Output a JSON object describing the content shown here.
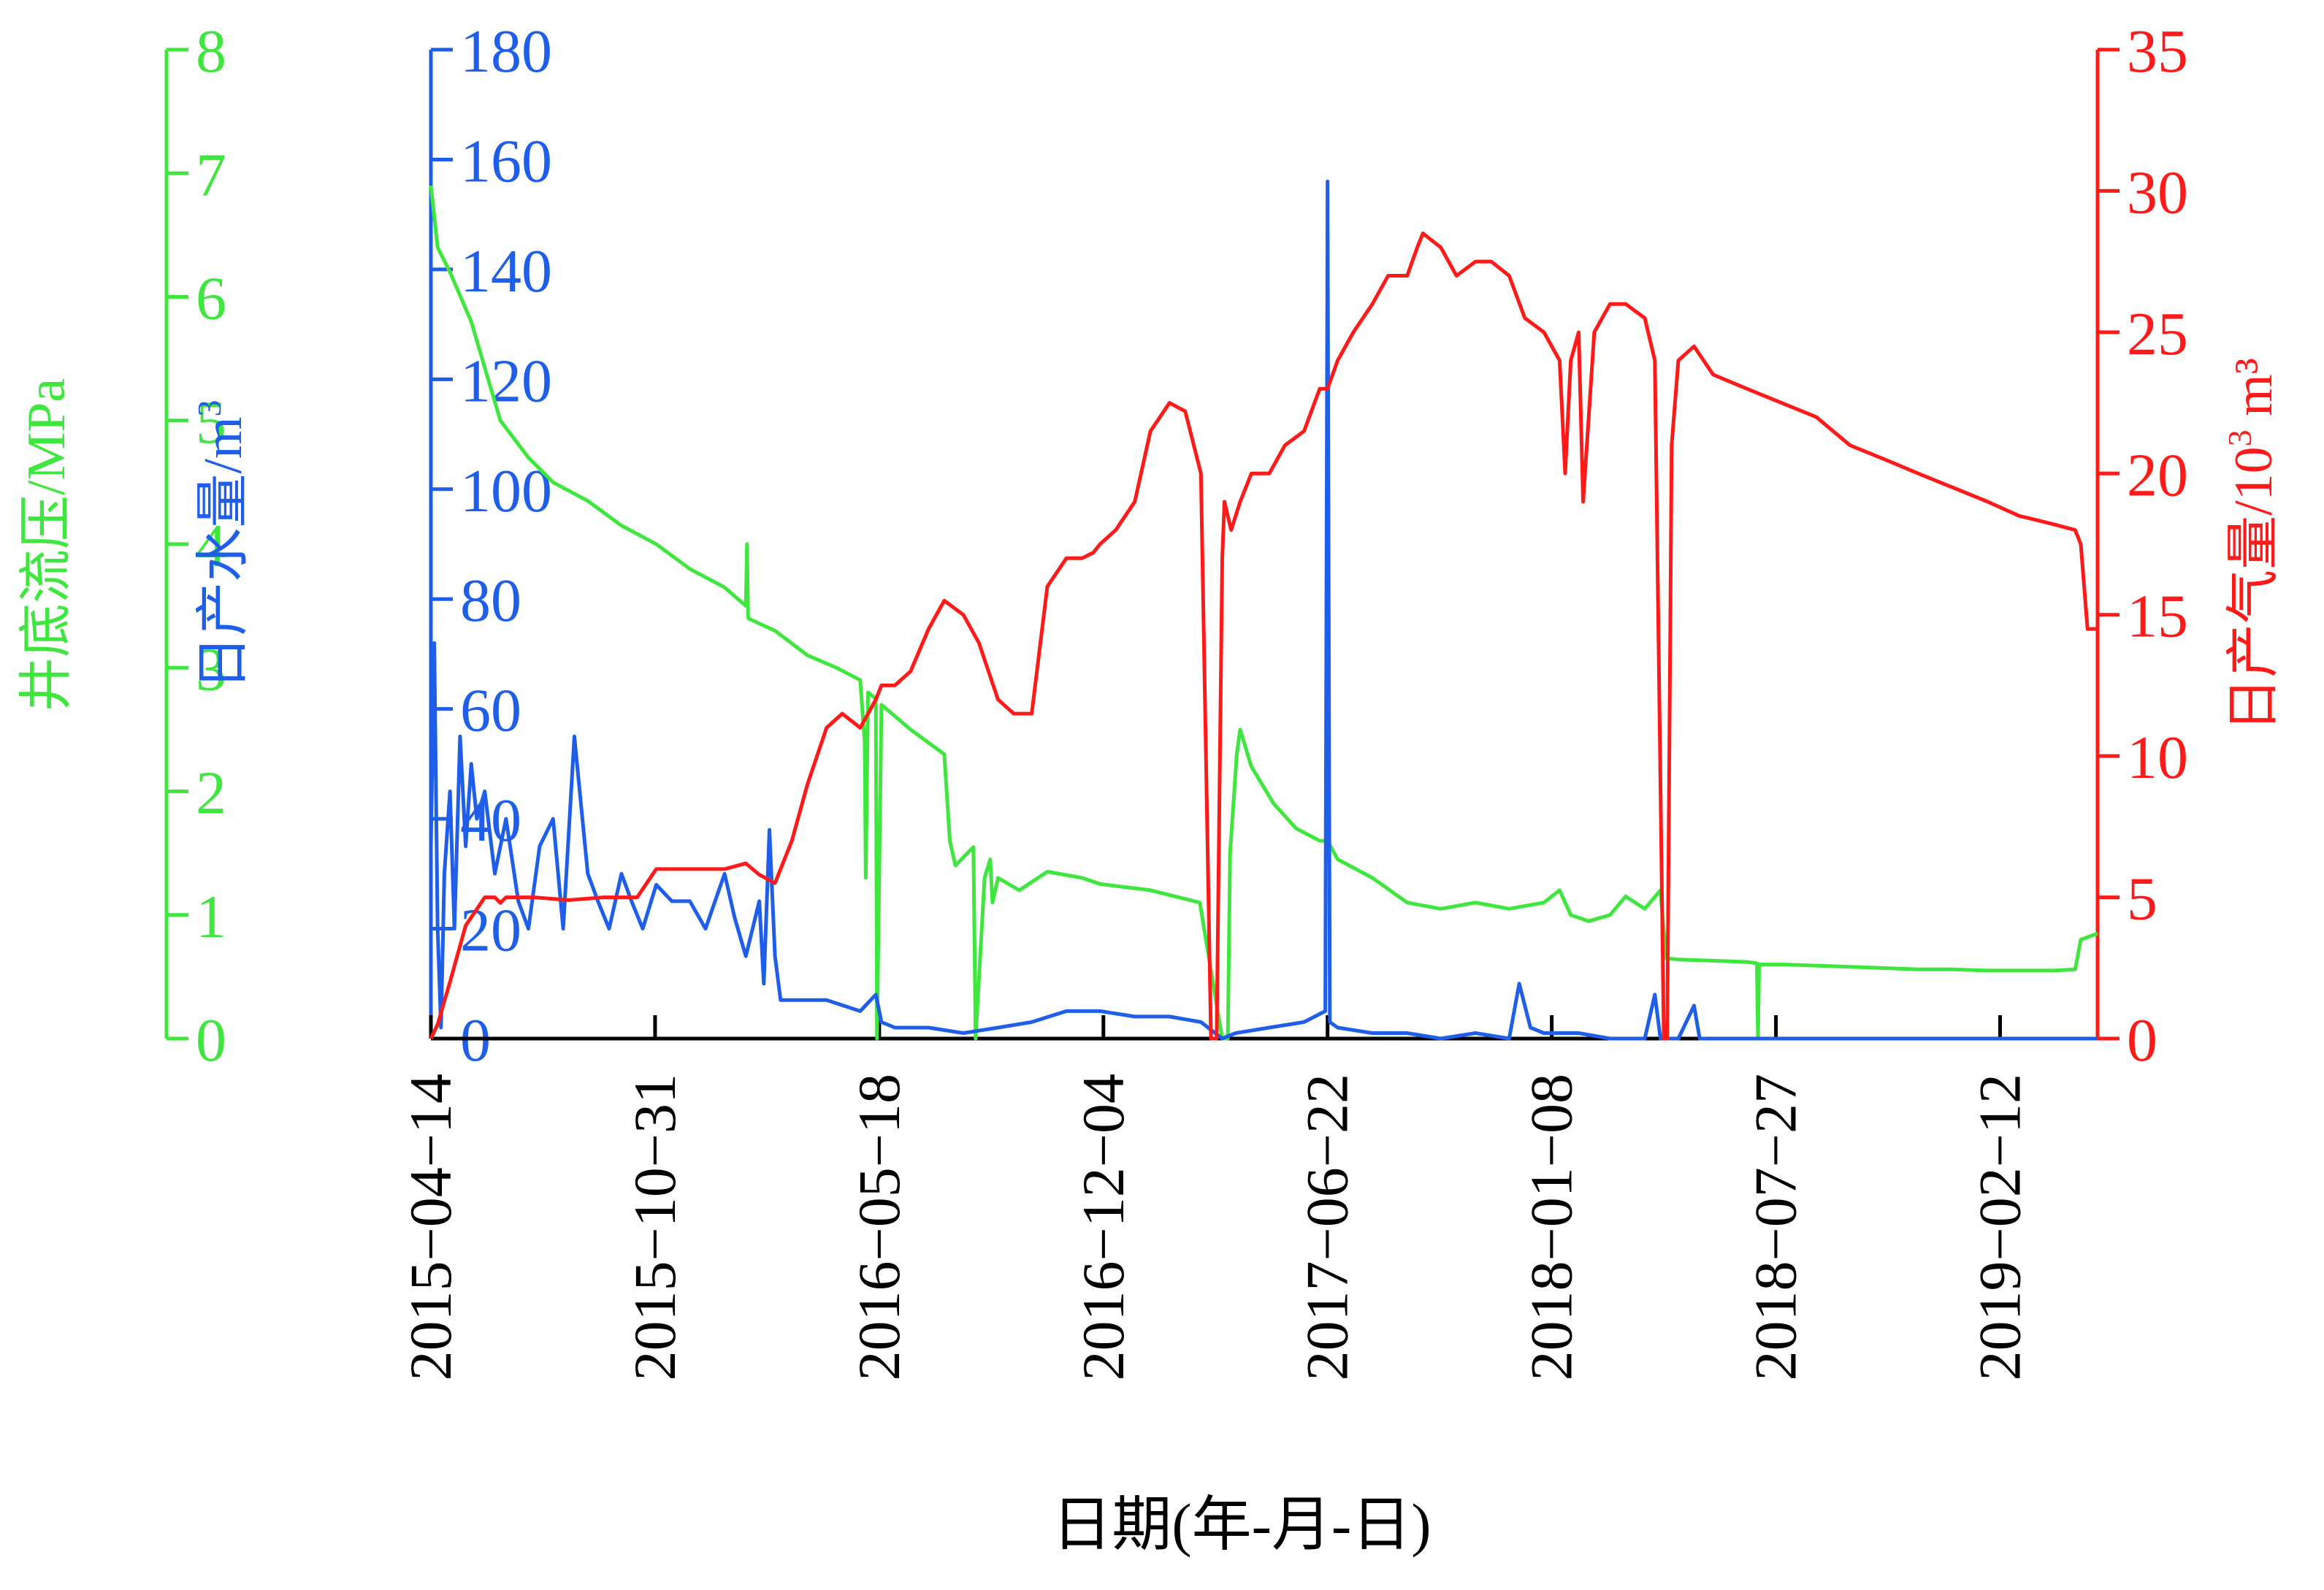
{
  "chart_data": {
    "type": "line",
    "xlabel": "日期(年-月-日)",
    "x_ticks": [
      "2015-04-14",
      "2015-10-31",
      "2016-05-18",
      "2016-12-04",
      "2017-06-22",
      "2018-01-08",
      "2018-07-27",
      "2019-02-12"
    ],
    "xlim": [
      "2015-04-14",
      "2019-05-10"
    ],
    "axes": {
      "pressure": {
        "label": "井底流压/MPa",
        "ylim": [
          0,
          8
        ],
        "ticks": [
          0,
          1,
          2,
          3,
          4,
          5,
          6,
          7,
          8
        ],
        "color": "#3ee63e",
        "side": "left-outer"
      },
      "water": {
        "label": "日产水量/m³",
        "ylim": [
          0,
          180
        ],
        "ticks": [
          0,
          20,
          40,
          60,
          80,
          100,
          120,
          140,
          160,
          180
        ],
        "color": "#1f5ee8",
        "side": "left-inner"
      },
      "gas": {
        "label": "日产气量/10³ m³",
        "ylim": [
          0,
          35
        ],
        "ticks": [
          0,
          5,
          10,
          15,
          20,
          25,
          30,
          35
        ],
        "color": "#ff1a1a",
        "side": "right"
      }
    },
    "series": [
      {
        "key": "pressure",
        "axis": "pressure",
        "color": "#3ee63e",
        "x": [
          "2015-04-14",
          "2015-04-20",
          "2015-05-01",
          "2015-05-20",
          "2015-06-15",
          "2015-07-10",
          "2015-08-01",
          "2015-09-01",
          "2015-10-01",
          "2015-11-01",
          "2015-12-01",
          "2016-01-01",
          "2016-01-20",
          "2016-01-21",
          "2016-01-22",
          "2016-02-15",
          "2016-03-15",
          "2016-04-10",
          "2016-05-01",
          "2016-05-05",
          "2016-05-06",
          "2016-05-08",
          "2016-05-15",
          "2016-05-16",
          "2016-05-20",
          "2016-06-15",
          "2016-07-15",
          "2016-07-20",
          "2016-07-25",
          "2016-08-10",
          "2016-08-12",
          "2016-08-20",
          "2016-08-25",
          "2016-08-27",
          "2016-09-01",
          "2016-09-20",
          "2016-10-15",
          "2016-11-15",
          "2016-12-01",
          "2017-01-15",
          "2017-02-28",
          "2017-03-20",
          "2017-03-25",
          "2017-03-27",
          "2017-04-02",
          "2017-04-05",
          "2017-04-15",
          "2017-05-05",
          "2017-05-25",
          "2017-06-15",
          "2017-06-22",
          "2017-07-01",
          "2017-08-01",
          "2017-09-01",
          "2017-10-01",
          "2017-11-01",
          "2017-12-01",
          "2018-01-01",
          "2018-01-15",
          "2018-01-25",
          "2018-02-10",
          "2018-03-01",
          "2018-03-15",
          "2018-04-01",
          "2018-04-15",
          "2018-04-20",
          "2018-05-01",
          "2018-06-01",
          "2018-07-01",
          "2018-07-10",
          "2018-07-11",
          "2018-07-12",
          "2018-08-01",
          "2018-09-01",
          "2018-10-01",
          "2018-11-01",
          "2018-12-01",
          "2019-01-01",
          "2019-02-01",
          "2019-03-01",
          "2019-04-01",
          "2019-04-20",
          "2019-04-25",
          "2019-05-10"
        ],
        "y": [
          6.9,
          6.4,
          6.2,
          5.8,
          5.0,
          4.7,
          4.5,
          4.35,
          4.15,
          4.0,
          3.8,
          3.65,
          3.5,
          4.0,
          3.4,
          3.3,
          3.1,
          3.0,
          2.9,
          2.4,
          1.3,
          2.8,
          2.75,
          0.0,
          2.7,
          2.5,
          2.3,
          1.6,
          1.4,
          1.55,
          0.0,
          1.3,
          1.45,
          1.1,
          1.3,
          1.2,
          1.35,
          1.3,
          1.25,
          1.2,
          1.1,
          0.0,
          0.0,
          1.5,
          2.3,
          2.5,
          2.2,
          1.9,
          1.7,
          1.6,
          1.6,
          1.45,
          1.3,
          1.1,
          1.05,
          1.1,
          1.05,
          1.1,
          1.2,
          1.0,
          0.95,
          1.0,
          1.15,
          1.05,
          1.2,
          0.65,
          0.64,
          0.63,
          0.62,
          0.61,
          0.0,
          0.6,
          0.6,
          0.59,
          0.58,
          0.57,
          0.56,
          0.56,
          0.55,
          0.55,
          0.55,
          0.56,
          0.8,
          0.85
        ]
      },
      {
        "key": "water",
        "axis": "water",
        "color": "#1f5ee8",
        "x": [
          "2015-04-14",
          "2015-04-17",
          "2015-04-20",
          "2015-04-23",
          "2015-04-26",
          "2015-05-01",
          "2015-05-05",
          "2015-05-10",
          "2015-05-15",
          "2015-05-20",
          "2015-05-25",
          "2015-06-01",
          "2015-06-10",
          "2015-06-20",
          "2015-07-01",
          "2015-07-10",
          "2015-07-20",
          "2015-08-01",
          "2015-08-10",
          "2015-08-20",
          "2015-09-01",
          "2015-09-10",
          "2015-09-20",
          "2015-10-01",
          "2015-10-10",
          "2015-10-20",
          "2015-11-01",
          "2015-11-15",
          "2015-12-01",
          "2015-12-15",
          "2016-01-01",
          "2016-01-10",
          "2016-01-20",
          "2016-02-01",
          "2016-02-05",
          "2016-02-10",
          "2016-02-15",
          "2016-02-20",
          "2016-03-01",
          "2016-04-01",
          "2016-05-01",
          "2016-05-15",
          "2016-05-20",
          "2016-06-01",
          "2016-07-01",
          "2016-08-01",
          "2016-09-01",
          "2016-10-01",
          "2016-11-01",
          "2016-12-01",
          "2017-01-01",
          "2017-02-01",
          "2017-03-01",
          "2017-03-20",
          "2017-04-01",
          "2017-05-01",
          "2017-06-01",
          "2017-06-20",
          "2017-06-22",
          "2017-06-24",
          "2017-07-01",
          "2017-08-01",
          "2017-09-01",
          "2017-10-01",
          "2017-11-01",
          "2017-12-01",
          "2017-12-10",
          "2017-12-20",
          "2018-01-01",
          "2018-02-01",
          "2018-03-01",
          "2018-04-01",
          "2018-04-10",
          "2018-04-15",
          "2018-05-01",
          "2018-05-15",
          "2018-05-20",
          "2018-06-01",
          "2018-07-01",
          "2019-05-10"
        ],
        "y": [
          35,
          72,
          20,
          2,
          30,
          45,
          20,
          55,
          35,
          50,
          40,
          45,
          30,
          40,
          25,
          20,
          35,
          40,
          20,
          55,
          30,
          25,
          20,
          30,
          25,
          20,
          28,
          25,
          25,
          20,
          30,
          22,
          15,
          25,
          10,
          38,
          15,
          7,
          7,
          7,
          5,
          8,
          3,
          2,
          2,
          1,
          2,
          3,
          5,
          5,
          4,
          4,
          3,
          0,
          1,
          2,
          3,
          5,
          156,
          3,
          2,
          1,
          1,
          0,
          1,
          0,
          10,
          2,
          1,
          1,
          0,
          0,
          8,
          0,
          0,
          6,
          0,
          0,
          0,
          0
        ]
      },
      {
        "key": "gas",
        "axis": "gas",
        "color": "#ff1a1a",
        "x": [
          "2015-04-14",
          "2015-04-20",
          "2015-05-01",
          "2015-05-15",
          "2015-06-01",
          "2015-06-10",
          "2015-06-15",
          "2015-06-20",
          "2015-07-15",
          "2015-08-15",
          "2015-09-15",
          "2015-10-15",
          "2015-11-01",
          "2015-12-01",
          "2016-01-01",
          "2016-01-20",
          "2016-02-01",
          "2016-02-15",
          "2016-03-01",
          "2016-03-15",
          "2016-04-01",
          "2016-04-15",
          "2016-05-01",
          "2016-05-15",
          "2016-05-20",
          "2016-06-01",
          "2016-06-15",
          "2016-07-01",
          "2016-07-15",
          "2016-08-01",
          "2016-08-15",
          "2016-09-01",
          "2016-09-15",
          "2016-10-01",
          "2016-10-15",
          "2016-11-01",
          "2016-11-15",
          "2016-11-25",
          "2016-12-01",
          "2016-12-15",
          "2017-01-01",
          "2017-01-15",
          "2017-02-01",
          "2017-02-15",
          "2017-03-01",
          "2017-03-10",
          "2017-03-15",
          "2017-03-20",
          "2017-03-22",
          "2017-03-28",
          "2017-04-05",
          "2017-04-15",
          "2017-05-01",
          "2017-05-15",
          "2017-06-01",
          "2017-06-15",
          "2017-06-22",
          "2017-07-01",
          "2017-07-15",
          "2017-08-01",
          "2017-08-15",
          "2017-09-01",
          "2017-09-10",
          "2017-09-15",
          "2017-10-01",
          "2017-10-15",
          "2017-11-01",
          "2017-11-15",
          "2017-12-01",
          "2017-12-15",
          "2018-01-01",
          "2018-01-15",
          "2018-01-20",
          "2018-01-25",
          "2018-02-01",
          "2018-02-05",
          "2018-02-15",
          "2018-03-01",
          "2018-03-15",
          "2018-04-01",
          "2018-04-10",
          "2018-04-18",
          "2018-04-21",
          "2018-04-25",
          "2018-05-01",
          "2018-05-15",
          "2018-06-01",
          "2018-07-01",
          "2018-08-01",
          "2018-09-01",
          "2018-10-01",
          "2018-11-01",
          "2018-12-01",
          "2019-01-01",
          "2019-02-01",
          "2019-03-01",
          "2019-04-01",
          "2019-04-20",
          "2019-04-25",
          "2019-05-01",
          "2019-05-10"
        ],
        "y": [
          0,
          0.5,
          2,
          4,
          5,
          5,
          4.8,
          5,
          5,
          4.9,
          5,
          5,
          6,
          6,
          6,
          6.2,
          5.8,
          5.5,
          7,
          9,
          11,
          11.5,
          11,
          12,
          12.5,
          12.5,
          13,
          14.5,
          15.5,
          15,
          14,
          12,
          11.5,
          11.5,
          16,
          17,
          17,
          17.2,
          17.5,
          18,
          19,
          21.5,
          22.5,
          22.2,
          20,
          0,
          0,
          17,
          19,
          18,
          19,
          20,
          20,
          21,
          21.5,
          23,
          23,
          24,
          25,
          26,
          27,
          27,
          28,
          28.5,
          28,
          27,
          27.5,
          27.5,
          27,
          25.5,
          25,
          24,
          20,
          24,
          25,
          19,
          25,
          26,
          26,
          25.5,
          24,
          0,
          0,
          21,
          24,
          24.5,
          23.5,
          23,
          22.5,
          22,
          21,
          20.5,
          20,
          19.5,
          19,
          18.5,
          18.2,
          18,
          17.5,
          14.5,
          14.5
        ]
      }
    ]
  }
}
